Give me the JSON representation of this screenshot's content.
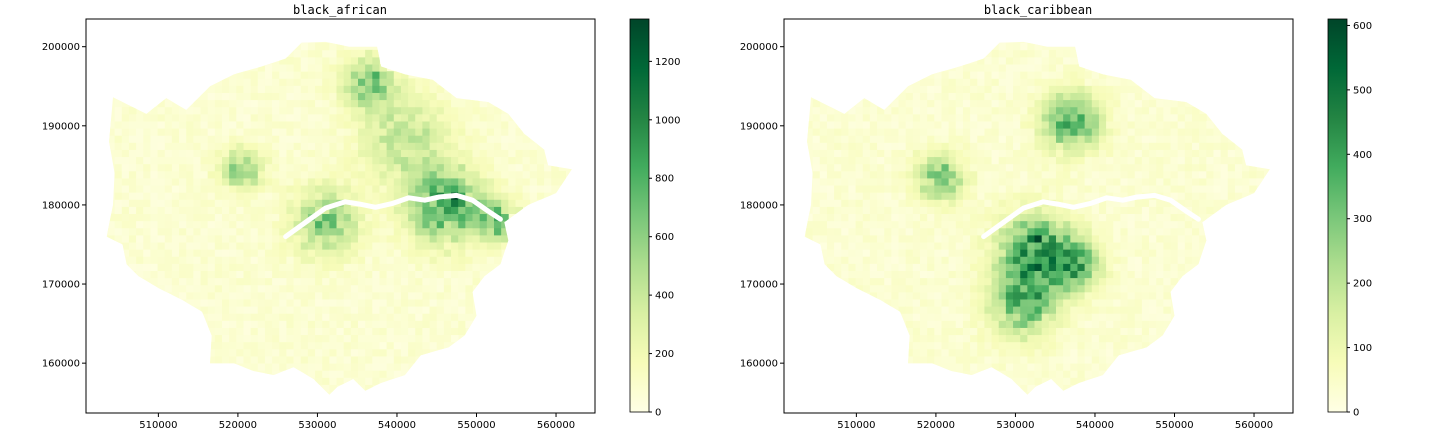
{
  "chart_data": [
    {
      "type": "heatmap",
      "title": "black_african",
      "xlabel": "",
      "ylabel": "",
      "xlim": [
        500900,
        564900
      ],
      "ylim": [
        153700,
        203500
      ],
      "xticks": [
        510000,
        520000,
        530000,
        540000,
        550000,
        560000
      ],
      "yticks": [
        160000,
        170000,
        180000,
        190000,
        200000
      ],
      "colorbar": {
        "colormap": "Greens",
        "min": 0,
        "max": 1345,
        "ticks": [
          0,
          200,
          400,
          600,
          800,
          1000,
          1200
        ]
      },
      "hotspots": [
        {
          "x": 536500,
          "y": 195500,
          "value": 650,
          "spread": 3000
        },
        {
          "x": 546000,
          "y": 180000,
          "value": 850,
          "spread": 4500
        },
        {
          "x": 552500,
          "y": 178000,
          "value": 700,
          "spread": 2500
        },
        {
          "x": 531000,
          "y": 178000,
          "value": 620,
          "spread": 4000
        },
        {
          "x": 520500,
          "y": 184500,
          "value": 600,
          "spread": 2500
        },
        {
          "x": 541000,
          "y": 188500,
          "value": 380,
          "spread": 5500
        },
        {
          "x": 547500,
          "y": 181000,
          "value": 1340,
          "spread": 700
        }
      ]
    },
    {
      "type": "heatmap",
      "title": "black_caribbean",
      "xlabel": "",
      "ylabel": "",
      "xlim": [
        500900,
        564900
      ],
      "ylim": [
        153700,
        203500
      ],
      "xticks": [
        510000,
        520000,
        530000,
        540000,
        550000,
        560000
      ],
      "yticks": [
        160000,
        170000,
        180000,
        190000,
        200000
      ],
      "colorbar": {
        "colormap": "Greens",
        "min": 0,
        "max": 610,
        "ticks": [
          0,
          100,
          200,
          300,
          400,
          500,
          600
        ]
      },
      "hotspots": [
        {
          "x": 532500,
          "y": 174000,
          "value": 420,
          "spread": 4500
        },
        {
          "x": 531000,
          "y": 167500,
          "value": 330,
          "spread": 4000
        },
        {
          "x": 537000,
          "y": 190500,
          "value": 360,
          "spread": 3500
        },
        {
          "x": 537500,
          "y": 172500,
          "value": 330,
          "spread": 3000
        },
        {
          "x": 520500,
          "y": 183500,
          "value": 280,
          "spread": 3000
        },
        {
          "x": 532500,
          "y": 176000,
          "value": 605,
          "spread": 600
        }
      ]
    }
  ]
}
